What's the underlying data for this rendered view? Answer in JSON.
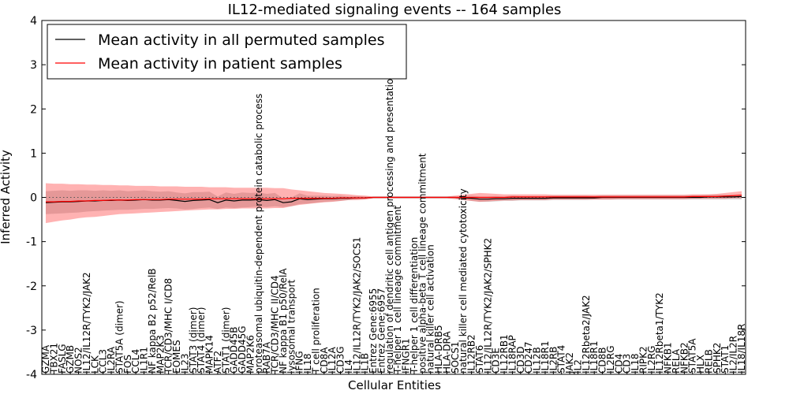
{
  "chart_data": {
    "type": "line",
    "title": "IL12-mediated signaling events -- 164 samples",
    "xlabel": "Cellular Entities",
    "ylabel": "Inferred Activity",
    "ylim": [
      -4,
      4
    ],
    "yticks": [
      -4,
      -3,
      -2,
      -1,
      0,
      1,
      2,
      3,
      4
    ],
    "legend_position": "top-left",
    "categories": [
      "GZMA",
      "TBX21",
      "FASLG",
      "GZMB",
      "NOS2",
      "IL12/IL12R/TYK2/JAK2",
      "LCK",
      "CCL3",
      "IL2RA",
      "STAT5A (dimer)",
      "FOS",
      "CCL4",
      "IL1R1",
      "NF kappa B2 p52/RelB",
      "MAP2K3",
      "TCR/CD3/MHC I/CD8",
      "EOMES",
      "IL23",
      "STAT3 (dimer)",
      "STAT4 (dimer)",
      "MAPK14",
      "ATF2",
      "STAT1 (dimer)",
      "GADD45B",
      "GADD45G",
      "MAP2K6",
      "proteasomal ubiquitin-dependent protein catabolic process",
      "RAB7A",
      "TCR/CD3/MHC II/CD4",
      "NF kappa B1 p50/RelA",
      "lysosomal transport",
      "IFNG",
      "IL18",
      "T cell proliferation",
      "CD8A",
      "IL12A",
      "CD3G",
      "IL4",
      "IL12/IL12R/TYK2/JAK2/SOCS1",
      "IL1B",
      "Entrez Gene:6955",
      "Entrez Gene:6957",
      "regulation of dendritic cell antigen processing and presentation",
      "T-helper 1 cell lineage commitment",
      "IFNGR1",
      "T-helper 1 cell differentiation",
      "positive alpha-beta T cell lineage commitment",
      "natural killer cell activation",
      "HLA-DRB5",
      "HLA-DRA",
      "SOCS1",
      "natural killer cell mediated cytotoxicity",
      "IL12RB2",
      "STAT6",
      "IL12/IL12R/TYK2/JAK2/SPHK2",
      "CD3E",
      "IL12RB1",
      "IL18RAP",
      "CD3D",
      "CD247",
      "IL12B",
      "IL18R1",
      "IL2RB",
      "STAT4",
      "JAK2",
      "IL2",
      "IL12Rbeta2/JAK2",
      "IL18R1",
      "CD8B",
      "IL2RG",
      "CD4",
      "CD3",
      "IL18",
      "RIPK2",
      "IL2RG",
      "IL12Rbeta1/TYK2",
      "NFKB1",
      "RELA",
      "NFKB2",
      "STAT5A",
      "HLX",
      "RELB",
      "SPHK2",
      "STAT1",
      "IL2/IL2R",
      "IL18/IL18R"
    ],
    "series": [
      {
        "name": "Mean activity in all permuted samples",
        "color": "#000000",
        "values": [
          -0.12,
          -0.11,
          -0.1,
          -0.1,
          -0.09,
          -0.08,
          -0.08,
          -0.07,
          -0.07,
          -0.06,
          -0.07,
          -0.06,
          -0.05,
          -0.06,
          -0.06,
          -0.05,
          -0.07,
          -0.09,
          -0.07,
          -0.06,
          -0.05,
          -0.12,
          -0.06,
          -0.08,
          -0.06,
          -0.06,
          -0.05,
          -0.07,
          -0.05,
          -0.12,
          -0.1,
          -0.03,
          -0.05,
          -0.04,
          -0.03,
          -0.03,
          -0.02,
          -0.02,
          -0.01,
          -0.01,
          0,
          0,
          0,
          0,
          0,
          0,
          0,
          0,
          0,
          0,
          0,
          -0.01,
          -0.02,
          -0.04,
          -0.04,
          -0.03,
          -0.03,
          -0.02,
          -0.02,
          -0.02,
          -0.02,
          -0.02,
          -0.01,
          -0.01,
          -0.01,
          -0.01,
          -0.01,
          -0.01,
          0,
          0,
          0,
          0,
          0,
          0,
          0,
          0,
          0,
          0,
          0,
          0,
          0,
          0.01,
          0.01,
          0.01,
          0.01,
          0.02
        ],
        "band_low": [
          -0.38,
          -0.37,
          -0.36,
          -0.35,
          -0.34,
          -0.32,
          -0.31,
          -0.3,
          -0.29,
          -0.28,
          -0.28,
          -0.27,
          -0.26,
          -0.26,
          -0.25,
          -0.24,
          -0.25,
          -0.27,
          -0.26,
          -0.24,
          -0.23,
          -0.26,
          -0.23,
          -0.24,
          -0.23,
          -0.22,
          -0.21,
          -0.22,
          -0.2,
          -0.22,
          -0.2,
          -0.15,
          -0.14,
          -0.12,
          -0.1,
          -0.09,
          -0.08,
          -0.06,
          -0.05,
          -0.04,
          -0.02,
          -0.02,
          -0.02,
          -0.02,
          -0.02,
          -0.02,
          -0.02,
          -0.02,
          -0.02,
          -0.02,
          -0.02,
          -0.05,
          -0.08,
          -0.1,
          -0.1,
          -0.09,
          -0.08,
          -0.08,
          -0.07,
          -0.07,
          -0.07,
          -0.07,
          -0.06,
          -0.06,
          -0.06,
          -0.06,
          -0.06,
          -0.05,
          -0.05,
          -0.05,
          -0.05,
          -0.05,
          -0.05,
          -0.05,
          -0.05,
          -0.05,
          -0.05,
          -0.05,
          -0.05,
          -0.05,
          -0.05,
          -0.05,
          -0.05,
          -0.05,
          -0.05,
          -0.05
        ],
        "band_high": [
          0.14,
          0.15,
          0.16,
          0.15,
          0.16,
          0.16,
          0.15,
          0.16,
          0.15,
          0.16,
          0.14,
          0.15,
          0.16,
          0.14,
          0.13,
          0.14,
          0.11,
          0.09,
          0.12,
          0.12,
          0.13,
          0.02,
          0.11,
          0.08,
          0.11,
          0.1,
          0.11,
          0.08,
          0.1,
          -0.02,
          0,
          0.09,
          0.04,
          0.04,
          0.04,
          0.03,
          0.04,
          0.02,
          0.03,
          0.02,
          0.02,
          0.02,
          0.02,
          0.02,
          0.02,
          0.02,
          0.02,
          0.02,
          0.02,
          0.02,
          0.02,
          0.03,
          0.04,
          0.02,
          0.02,
          0.03,
          0.02,
          0.04,
          0.03,
          0.03,
          0.03,
          0.03,
          0.04,
          0.04,
          0.04,
          0.04,
          0.04,
          0.03,
          0.05,
          0.05,
          0.05,
          0.05,
          0.05,
          0.05,
          0.05,
          0.05,
          0.05,
          0.05,
          0.05,
          0.05,
          0.05,
          0.06,
          0.06,
          0.06,
          0.06,
          0.07
        ]
      },
      {
        "name": "Mean activity in patient samples",
        "color": "#ff0000",
        "values": [
          -0.1,
          -0.1,
          -0.09,
          -0.09,
          -0.08,
          -0.08,
          -0.07,
          -0.07,
          -0.06,
          -0.06,
          -0.06,
          -0.05,
          -0.05,
          -0.05,
          -0.05,
          -0.04,
          -0.04,
          -0.04,
          -0.04,
          -0.04,
          -0.03,
          -0.03,
          -0.03,
          -0.03,
          -0.03,
          -0.03,
          -0.03,
          -0.03,
          -0.03,
          -0.03,
          -0.02,
          -0.02,
          -0.02,
          -0.02,
          -0.02,
          -0.02,
          -0.01,
          -0.01,
          -0.01,
          -0.01,
          0,
          0,
          0,
          0,
          0,
          0,
          0,
          0,
          0,
          0,
          0,
          0,
          0,
          0,
          0,
          0,
          0,
          0.01,
          0.01,
          0.01,
          0.01,
          0.01,
          0.01,
          0.01,
          0.01,
          0.01,
          0.01,
          0.01,
          0.01,
          0.01,
          0.01,
          0.01,
          0.01,
          0.01,
          0.01,
          0.01,
          0.01,
          0.01,
          0.01,
          0.02,
          0.02,
          0.02,
          0.02,
          0.03,
          0.04,
          0.05
        ],
        "band_low": [
          -0.58,
          -0.55,
          -0.52,
          -0.5,
          -0.47,
          -0.45,
          -0.44,
          -0.42,
          -0.4,
          -0.38,
          -0.37,
          -0.36,
          -0.35,
          -0.34,
          -0.33,
          -0.32,
          -0.31,
          -0.3,
          -0.29,
          -0.28,
          -0.27,
          -0.27,
          -0.26,
          -0.26,
          -0.25,
          -0.25,
          -0.25,
          -0.25,
          -0.24,
          -0.24,
          -0.2,
          -0.17,
          -0.15,
          -0.13,
          -0.11,
          -0.1,
          -0.08,
          -0.06,
          -0.06,
          -0.05,
          -0.02,
          -0.02,
          -0.02,
          -0.02,
          -0.02,
          -0.02,
          -0.02,
          -0.02,
          -0.02,
          -0.02,
          -0.04,
          -0.06,
          -0.08,
          -0.1,
          -0.09,
          -0.08,
          -0.07,
          -0.07,
          -0.06,
          -0.06,
          -0.06,
          -0.06,
          -0.05,
          -0.05,
          -0.05,
          -0.05,
          -0.05,
          -0.05,
          -0.05,
          -0.05,
          -0.04,
          -0.04,
          -0.04,
          -0.04,
          -0.04,
          -0.04,
          -0.04,
          -0.04,
          -0.04,
          -0.03,
          -0.03,
          -0.03,
          -0.03,
          -0.03,
          -0.02,
          -0.02
        ],
        "band_high": [
          0.32,
          0.31,
          0.31,
          0.3,
          0.3,
          0.29,
          0.29,
          0.28,
          0.28,
          0.27,
          0.27,
          0.26,
          0.26,
          0.26,
          0.25,
          0.25,
          0.25,
          0.24,
          0.24,
          0.24,
          0.23,
          0.23,
          0.23,
          0.22,
          0.22,
          0.22,
          0.22,
          0.22,
          0.21,
          0.21,
          0.18,
          0.16,
          0.14,
          0.12,
          0.1,
          0.09,
          0.08,
          0.07,
          0.05,
          0.04,
          0.02,
          0.02,
          0.02,
          0.02,
          0.02,
          0.02,
          0.02,
          0.02,
          0.02,
          0.02,
          0.04,
          0.06,
          0.08,
          0.1,
          0.09,
          0.08,
          0.07,
          0.07,
          0.07,
          0.07,
          0.07,
          0.07,
          0.06,
          0.06,
          0.06,
          0.06,
          0.06,
          0.06,
          0.06,
          0.06,
          0.06,
          0.06,
          0.06,
          0.06,
          0.06,
          0.06,
          0.06,
          0.06,
          0.06,
          0.07,
          0.07,
          0.07,
          0.08,
          0.1,
          0.12,
          0.14
        ]
      }
    ]
  }
}
